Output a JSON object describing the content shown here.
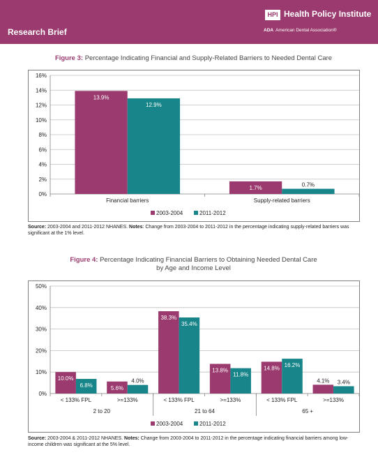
{
  "header": {
    "section": "Research Brief",
    "logo_mark": "HPI",
    "org_name": "Health Policy Institute",
    "ada_abbrev": "ADA",
    "ada_name": "American Dental Association®",
    "colors": {
      "banner": "#9a3a6e",
      "series_2003": "#9a3a6e",
      "series_2011": "#17858a"
    }
  },
  "figure3": {
    "label": "Figure 3:",
    "title": "Percentage Indicating Financial and Supply-Related Barriers to Needed Dental Care",
    "source_label": "Source:",
    "source_text": "2003-2004 and 2011-2012 NHANES.",
    "notes_label": "Notes",
    "notes_text": "Change from 2003-2004 to 2011-2012 in the percentage indicating supply-related barriers was significant at the 1% level."
  },
  "figure4": {
    "label": "Figure 4:",
    "title_line1": "Percentage Indicating Financial Barriers to Obtaining Needed Dental Care",
    "title_line2": "by Age and Income Level",
    "source_label": "Source:",
    "source_text": "2003-2004 & 2011-2012 NHANES.",
    "notes_label": "Notes:",
    "notes_text": "Change from 2003-2004 to 2011-2012 in the percentage indicating financial barriers among low-income children was significant at the 5% level."
  },
  "chart_data": [
    {
      "type": "bar",
      "categories": [
        "Financial barriers",
        "Supply-related barriers"
      ],
      "series": [
        {
          "name": "2003-2004",
          "values": [
            13.9,
            1.7
          ],
          "labels": [
            "13.9%",
            "1.7%"
          ]
        },
        {
          "name": "2011-2012",
          "values": [
            12.9,
            0.7
          ],
          "labels": [
            "12.9%",
            "0.7%"
          ]
        }
      ],
      "ylim": [
        0,
        16
      ],
      "yticks": [
        "0%",
        "2%",
        "4%",
        "6%",
        "8%",
        "10%",
        "12%",
        "14%",
        "16%"
      ],
      "grid": true,
      "legend": "bottom-center"
    },
    {
      "type": "bar",
      "categories": [
        "< 133% FPL",
        ">=133%",
        "< 133% FPL",
        ">=133%",
        "< 133% FPL",
        ">=133%"
      ],
      "groups": [
        "2 to 20",
        "21 to 64",
        "65 +"
      ],
      "series": [
        {
          "name": "2003-2004",
          "values": [
            10.0,
            5.6,
            38.3,
            13.8,
            14.8,
            4.1
          ],
          "labels": [
            "10.0%",
            "5.6%",
            "38.3%",
            "13.8%",
            "14.8%",
            "4.1%"
          ]
        },
        {
          "name": "2011-2012",
          "values": [
            6.8,
            4.0,
            35.4,
            11.8,
            16.2,
            3.4
          ],
          "labels": [
            "6.8%",
            "4.0%",
            "35.4%",
            "11.8%",
            "16.2%",
            "3.4%"
          ]
        }
      ],
      "ylim": [
        0,
        50
      ],
      "yticks": [
        "0%",
        "10%",
        "20%",
        "30%",
        "40%",
        "50%"
      ],
      "grid": true,
      "legend": "bottom-center"
    }
  ]
}
